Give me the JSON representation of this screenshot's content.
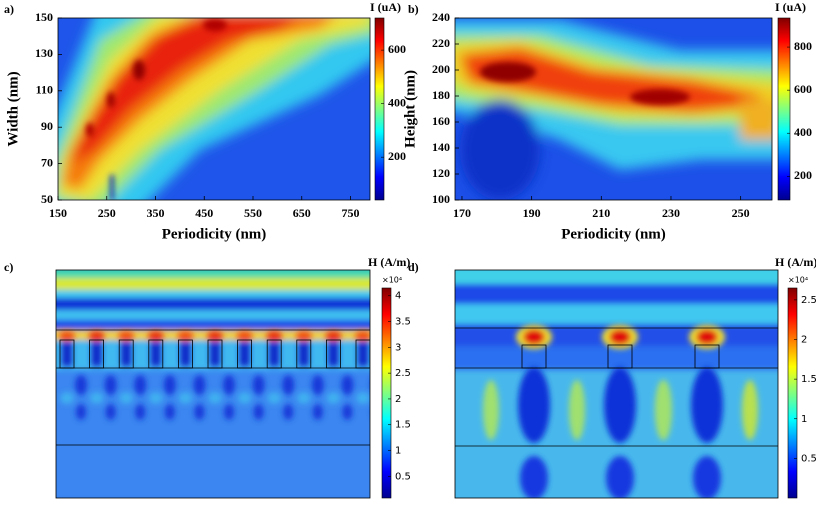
{
  "chart_data": [
    {
      "type": "heatmap",
      "panel_label": "a)",
      "x_label": "Periodicity (nm)",
      "y_label": "Width (nm)",
      "colorbar_label": "I (uA)",
      "colormap": "jet",
      "xlim": [
        150,
        790
      ],
      "xticks": [
        150,
        250,
        350,
        450,
        550,
        650,
        750
      ],
      "ylim": [
        50,
        150
      ],
      "yticks": [
        50,
        70,
        90,
        110,
        130,
        150
      ],
      "clim": [
        40,
        720
      ],
      "cticks": [
        200,
        400,
        600
      ]
    },
    {
      "type": "heatmap",
      "panel_label": "b)",
      "x_label": "Periodicity (nm)",
      "y_label": "Height (nm)",
      "colorbar_label": "I (uA)",
      "colormap": "jet",
      "xlim": [
        168,
        259
      ],
      "xticks": [
        170,
        190,
        210,
        230,
        250
      ],
      "ylim": [
        100,
        240
      ],
      "yticks": [
        100,
        120,
        140,
        160,
        180,
        200,
        220,
        240
      ],
      "clim": [
        90,
        935
      ],
      "cticks": [
        200,
        400,
        600,
        800
      ]
    },
    {
      "type": "heatmap",
      "panel_label": "c)",
      "colorbar_label": "H (A/m)",
      "colorbar_multiplier": "×10⁴",
      "colormap": "jet",
      "clim": [
        0.08,
        4.15
      ],
      "cticks": [
        0.5,
        1,
        1.5,
        2,
        2.5,
        3,
        3.5,
        4
      ]
    },
    {
      "type": "heatmap",
      "panel_label": "d)",
      "colorbar_label": "H (A/m)",
      "colorbar_multiplier": "×10⁴",
      "colormap": "jet",
      "clim": [
        0,
        2.65
      ],
      "cticks": [
        0.5,
        1,
        1.5,
        2,
        2.5
      ]
    }
  ]
}
